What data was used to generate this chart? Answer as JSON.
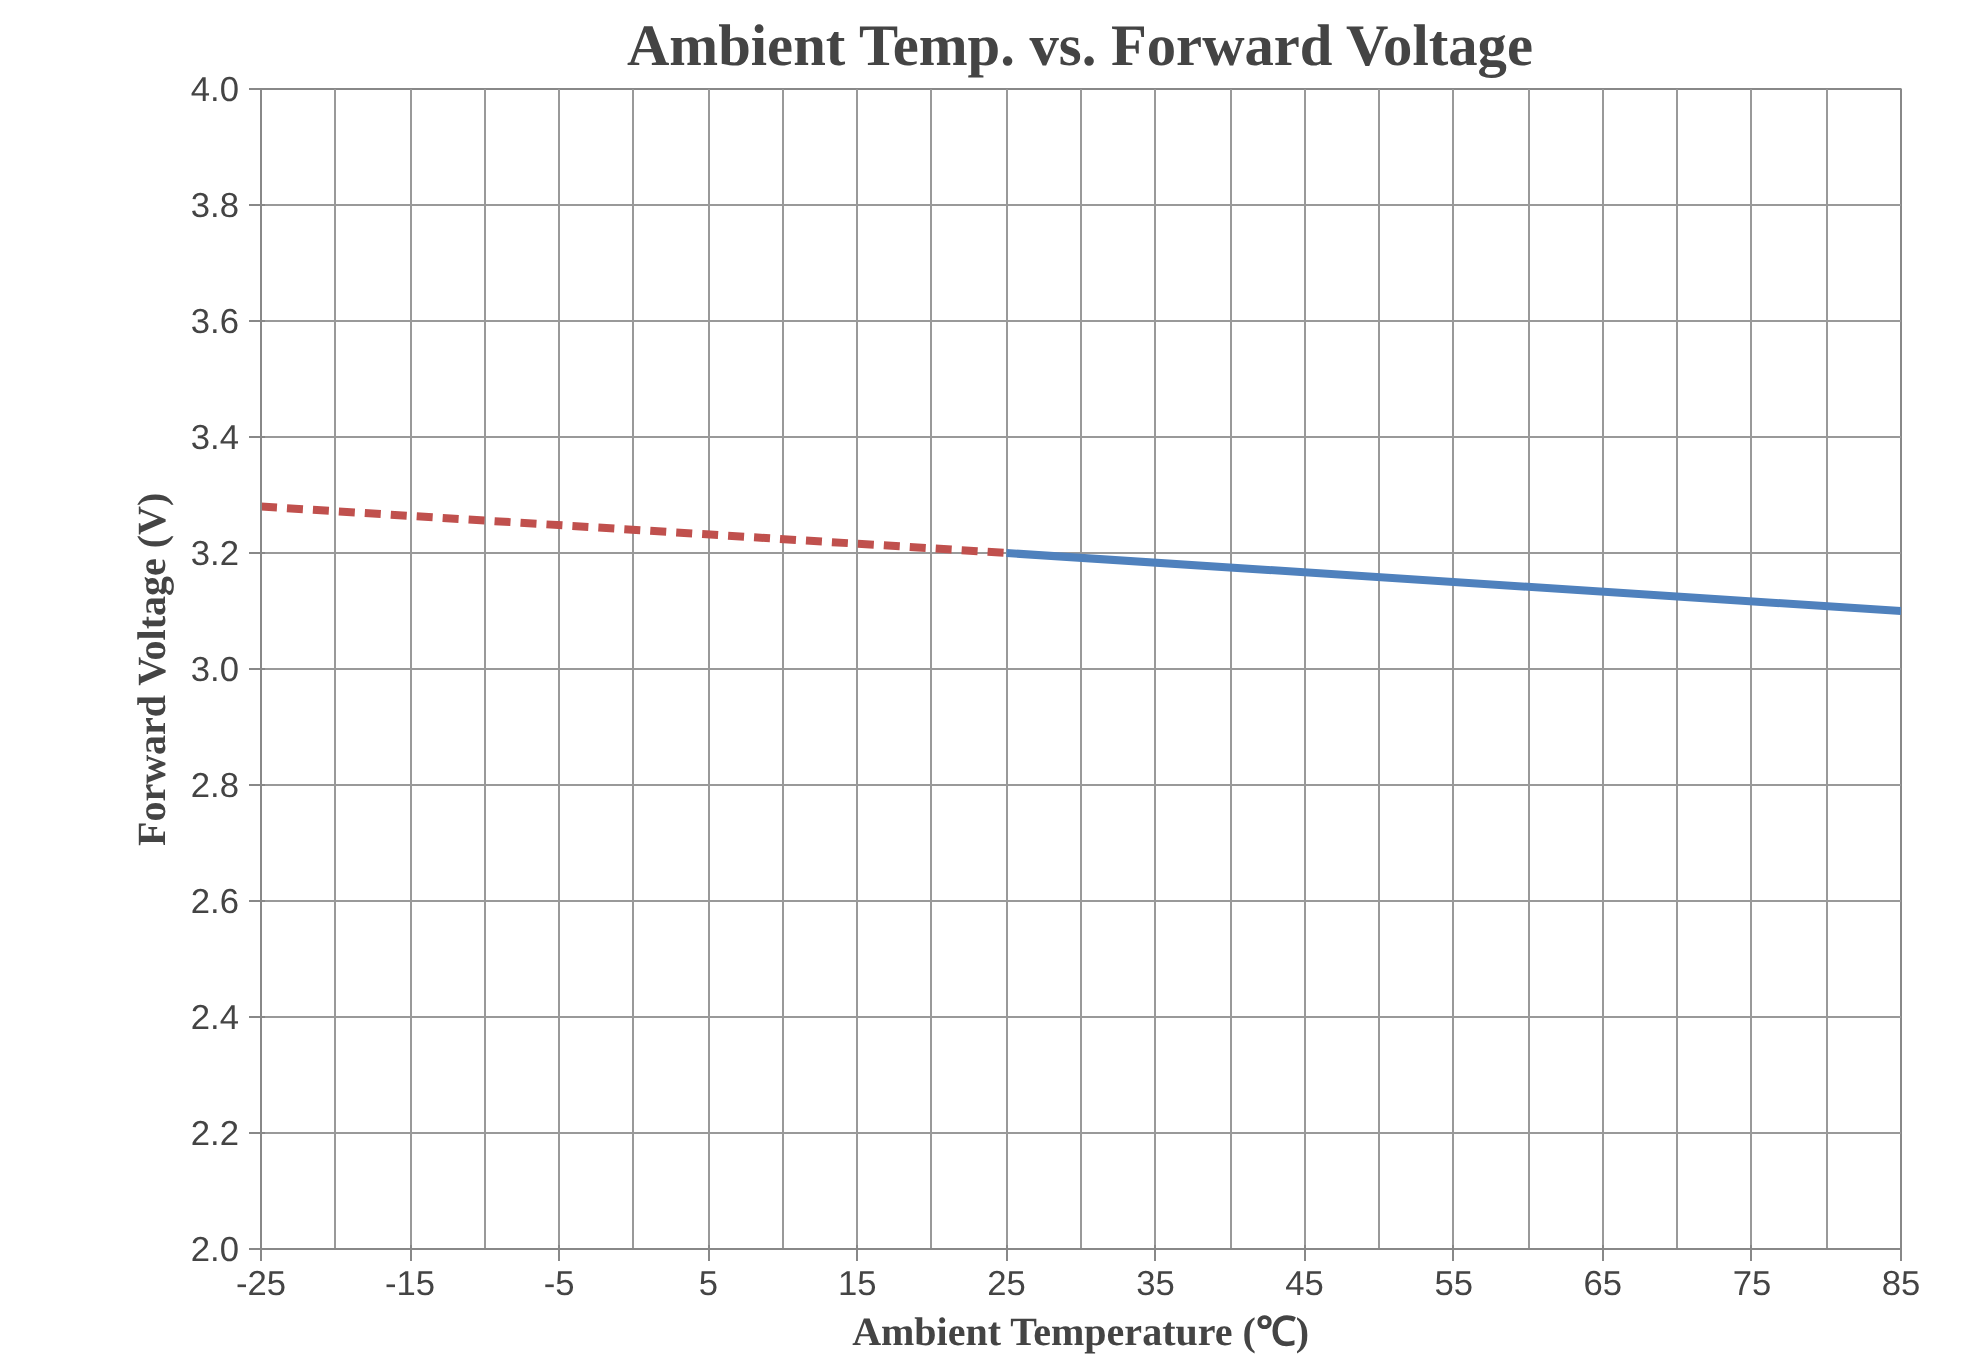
{
  "chart_data": {
    "type": "line",
    "title": "Ambient Temp. vs. Forward Voltage",
    "xlabel": "Ambient Temperature (℃)",
    "ylabel": "Forward Voltage (V)",
    "xlim": [
      -25,
      85
    ],
    "xticks": [
      -25,
      -15,
      -5,
      5,
      15,
      25,
      35,
      45,
      55,
      65,
      75,
      85
    ],
    "ylim": [
      2.0,
      4.0
    ],
    "yticks": [
      {
        "value": 2.0,
        "label": "2.0"
      },
      {
        "value": 2.2,
        "label": "2.2"
      },
      {
        "value": 2.4,
        "label": "2.4"
      },
      {
        "value": 2.6,
        "label": "2.6"
      },
      {
        "value": 2.8,
        "label": "2.8"
      },
      {
        "value": 3.0,
        "label": "3.0"
      },
      {
        "value": 3.2,
        "label": "3.2"
      },
      {
        "value": 3.4,
        "label": "3.4"
      },
      {
        "value": 3.6,
        "label": "3.6"
      },
      {
        "value": 3.8,
        "label": "3.8"
      },
      {
        "value": 4.0,
        "label": "4.0"
      }
    ],
    "grid": true,
    "series": [
      {
        "color": "#c0504d",
        "x": [
          -25,
          25
        ],
        "values": [
          3.28,
          3.2
        ],
        "line_style": "dashed"
      },
      {
        "color": "#4f81bd",
        "x": [
          25,
          85
        ],
        "values": [
          3.2,
          3.1
        ],
        "line_style": "solid"
      }
    ]
  }
}
